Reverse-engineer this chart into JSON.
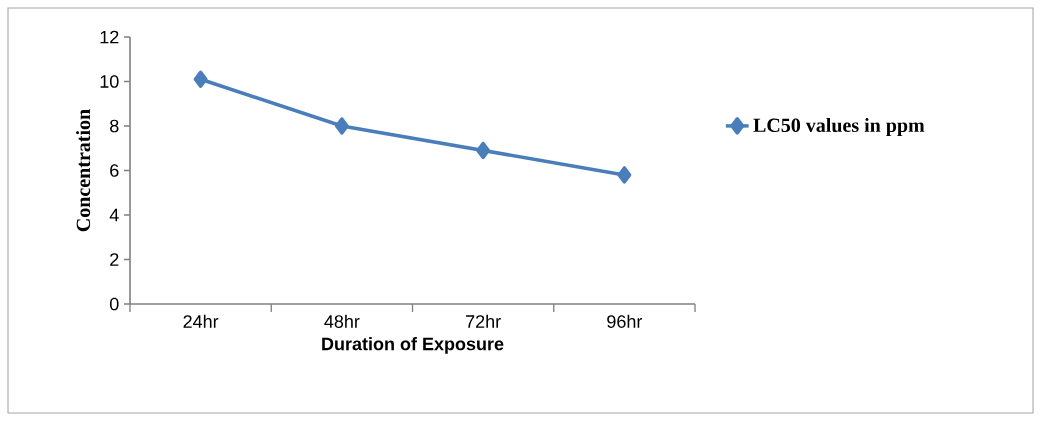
{
  "chart_data": {
    "type": "line",
    "xlabel": "Duration of Exposure",
    "ylabel": "Concentration",
    "categories": [
      "24hr",
      "48hr",
      "72hr",
      "96hr"
    ],
    "series": [
      {
        "name": "LC50 values in ppm",
        "color": "#4a7ebb",
        "values": [
          10.1,
          8.0,
          6.9,
          5.8
        ]
      }
    ],
    "ylim": [
      0,
      12
    ],
    "yticks": [
      0,
      2,
      4,
      6,
      8,
      10,
      12
    ],
    "grid": false,
    "legend": "right",
    "marker": "diamond",
    "line_style": "solid"
  }
}
